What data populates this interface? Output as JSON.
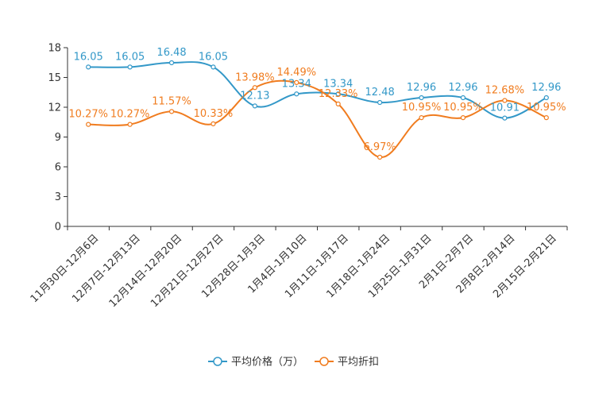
{
  "chart_data": {
    "type": "line",
    "categories": [
      "11月30日-12月6日",
      "12月7日-12月13日",
      "12月14日-12月20日",
      "12月21日-12月27日",
      "12月28日-1月3日",
      "1月4日-1月10日",
      "1月11日-1月17日",
      "1月18日-1月24日",
      "1月25日-1月31日",
      "2月1日-2月7日",
      "2月8日-2月14日",
      "2月15日-2月21日"
    ],
    "ylim": [
      0,
      18
    ],
    "yticks": [
      0,
      3,
      6,
      9,
      12,
      15,
      18
    ],
    "ytick_labels": [
      "0",
      "3",
      "6",
      "9",
      "12",
      "15",
      "18"
    ],
    "series": [
      {
        "name": "平均价格（万）",
        "color": "#3398c8",
        "values": [
          16.05,
          16.05,
          16.48,
          16.05,
          12.13,
          13.34,
          13.34,
          12.48,
          12.96,
          12.96,
          10.91,
          12.96
        ],
        "labels": [
          "16.05",
          "16.05",
          "16.48",
          "16.05",
          "12.13",
          "13.34",
          "13.34",
          "12.48",
          "12.96",
          "12.96",
          "10.91",
          "12.96"
        ]
      },
      {
        "name": "平均折扣",
        "color": "#f07c1f",
        "values": [
          10.27,
          10.27,
          11.57,
          10.33,
          13.98,
          14.49,
          12.33,
          6.97,
          10.95,
          10.95,
          12.68,
          10.95
        ],
        "labels": [
          "10.27%",
          "10.27%",
          "11.57%",
          "10.33%",
          "13.98%",
          "14.49%",
          "12.33%",
          "6.97%",
          "10.95%",
          "10.95%",
          "12.68%",
          "10.95%"
        ]
      }
    ],
    "legend_position": "bottom-center",
    "grid": false
  }
}
